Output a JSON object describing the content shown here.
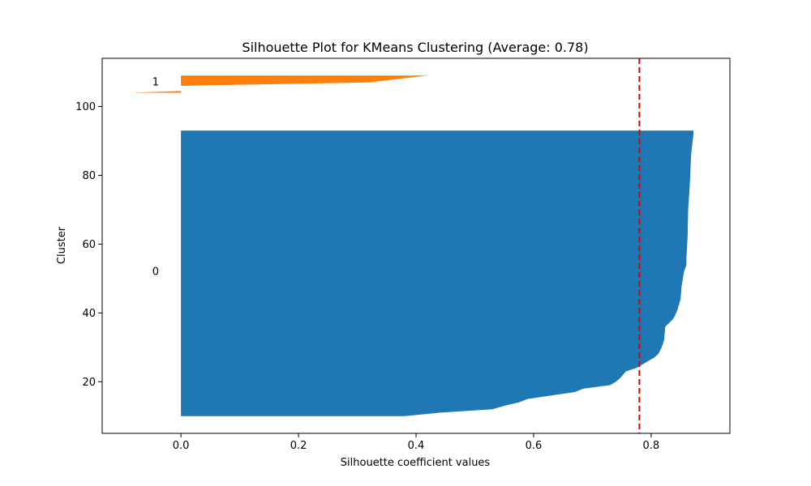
{
  "chart_data": {
    "type": "area",
    "title": "Silhouette Plot for KMeans Clustering (Average: 0.78)",
    "xlabel": "Silhouette coefficient values",
    "ylabel": "Cluster",
    "xlim": [
      -0.134,
      0.934
    ],
    "ylim": [
      5,
      114
    ],
    "xticks": [
      0.0,
      0.2,
      0.4,
      0.6,
      0.8
    ],
    "xtick_labels": [
      "0.0",
      "0.2",
      "0.4",
      "0.6",
      "0.8"
    ],
    "yticks": [
      20,
      40,
      60,
      80,
      100
    ],
    "ytick_labels": [
      "20",
      "40",
      "60",
      "80",
      "100"
    ],
    "average_line": {
      "x": 0.78,
      "color": "#e00000",
      "style": "dashed"
    },
    "grid": false,
    "series": [
      {
        "name": "0",
        "label": "0",
        "label_pos": {
          "x": -0.043,
          "y": 52
        },
        "color": "#1f77b4",
        "y_lower": 10,
        "y_upper": 93,
        "profile": [
          {
            "y": 10,
            "x": 0.38
          },
          {
            "y": 11,
            "x": 0.44
          },
          {
            "y": 12,
            "x": 0.53
          },
          {
            "y": 13,
            "x": 0.55
          },
          {
            "y": 14,
            "x": 0.575
          },
          {
            "y": 15,
            "x": 0.59
          },
          {
            "y": 16,
            "x": 0.63
          },
          {
            "y": 17,
            "x": 0.67
          },
          {
            "y": 18,
            "x": 0.685
          },
          {
            "y": 19,
            "x": 0.73
          },
          {
            "y": 20,
            "x": 0.74
          },
          {
            "y": 21,
            "x": 0.747
          },
          {
            "y": 22,
            "x": 0.752
          },
          {
            "y": 23,
            "x": 0.757
          },
          {
            "y": 24,
            "x": 0.775
          },
          {
            "y": 25,
            "x": 0.785
          },
          {
            "y": 26,
            "x": 0.795
          },
          {
            "y": 27,
            "x": 0.805
          },
          {
            "y": 28,
            "x": 0.812
          },
          {
            "y": 30,
            "x": 0.818
          },
          {
            "y": 32,
            "x": 0.822
          },
          {
            "y": 36,
            "x": 0.824
          },
          {
            "y": 37,
            "x": 0.83
          },
          {
            "y": 38,
            "x": 0.836
          },
          {
            "y": 39,
            "x": 0.84
          },
          {
            "y": 41,
            "x": 0.845
          },
          {
            "y": 44,
            "x": 0.85
          },
          {
            "y": 48,
            "x": 0.852
          },
          {
            "y": 52,
            "x": 0.856
          },
          {
            "y": 54,
            "x": 0.86
          },
          {
            "y": 56,
            "x": 0.86
          },
          {
            "y": 62,
            "x": 0.862
          },
          {
            "y": 70,
            "x": 0.863
          },
          {
            "y": 78,
            "x": 0.866
          },
          {
            "y": 86,
            "x": 0.868
          },
          {
            "y": 92,
            "x": 0.872
          },
          {
            "y": 93,
            "x": 0.872
          }
        ]
      },
      {
        "name": "1",
        "label": "1",
        "label_pos": {
          "x": -0.043,
          "y": 107
        },
        "color": "#ff7f0e",
        "y_lower": 103,
        "y_upper": 109,
        "profile": [
          {
            "y": 104,
            "x": -0.085
          },
          {
            "y": 104.5,
            "x": 0.0
          },
          {
            "y": 105,
            "x": 0.0
          },
          {
            "y": 106,
            "x": 0.0
          },
          {
            "y": 107,
            "x": 0.32
          },
          {
            "y": 108,
            "x": 0.37
          },
          {
            "y": 109,
            "x": 0.42
          }
        ]
      }
    ]
  }
}
